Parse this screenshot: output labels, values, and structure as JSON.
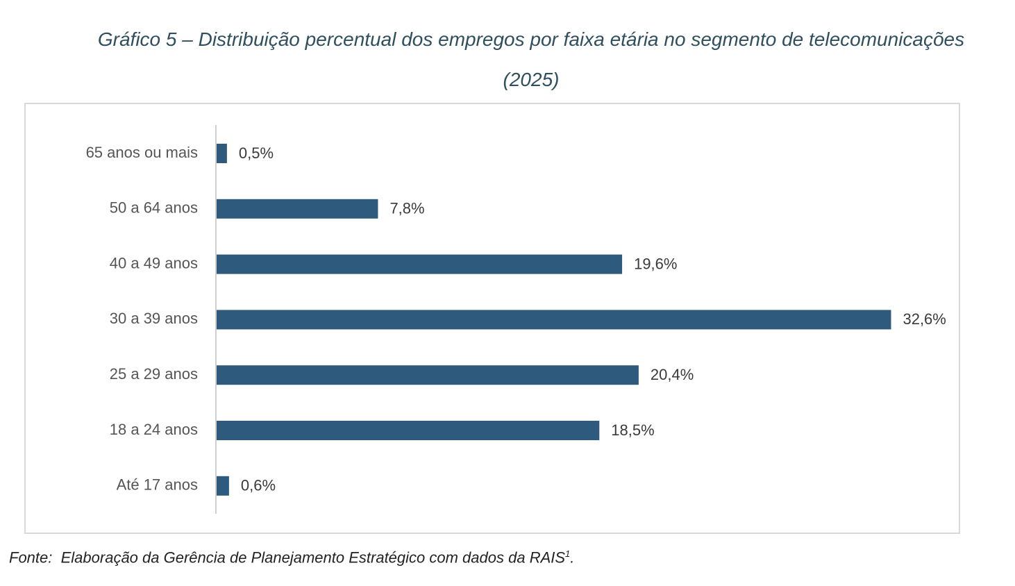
{
  "title": {
    "line1": "Gráfico 5 – Distribuição percentual dos empregos por faixa etária no segmento de telecomunicações",
    "line2": "(2025)"
  },
  "source": {
    "label": "Fonte:",
    "text": "Elaboração da Gerência de Planejamento Estratégico com dados da RAIS",
    "footnote_mark": "1",
    "end": "."
  },
  "colors": {
    "bar": "#2e5b7d",
    "title": "#2f4f5f",
    "label": "#555555",
    "axis": "#d0d0d0",
    "frame": "#d9d9d9"
  },
  "chart_data": {
    "type": "bar",
    "orientation": "horizontal",
    "categories": [
      "65 anos ou mais",
      "50 a 64 anos",
      "40 a 49 anos",
      "30 a 39 anos",
      "25 a 29 anos",
      "18 a 24 anos",
      "Até 17 anos"
    ],
    "values": [
      0.5,
      7.8,
      19.6,
      32.6,
      20.4,
      18.5,
      0.6
    ],
    "value_labels": [
      "0,5%",
      "7,8%",
      "19,6%",
      "32,6%",
      "20,4%",
      "18,5%",
      "0,6%"
    ],
    "unit": "%",
    "xlim": [
      0,
      32.6
    ],
    "grid": false,
    "legend": "none",
    "title": "Gráfico 5 – Distribuição percentual dos empregos por faixa etária no segmento de telecomunicações (2025)"
  }
}
